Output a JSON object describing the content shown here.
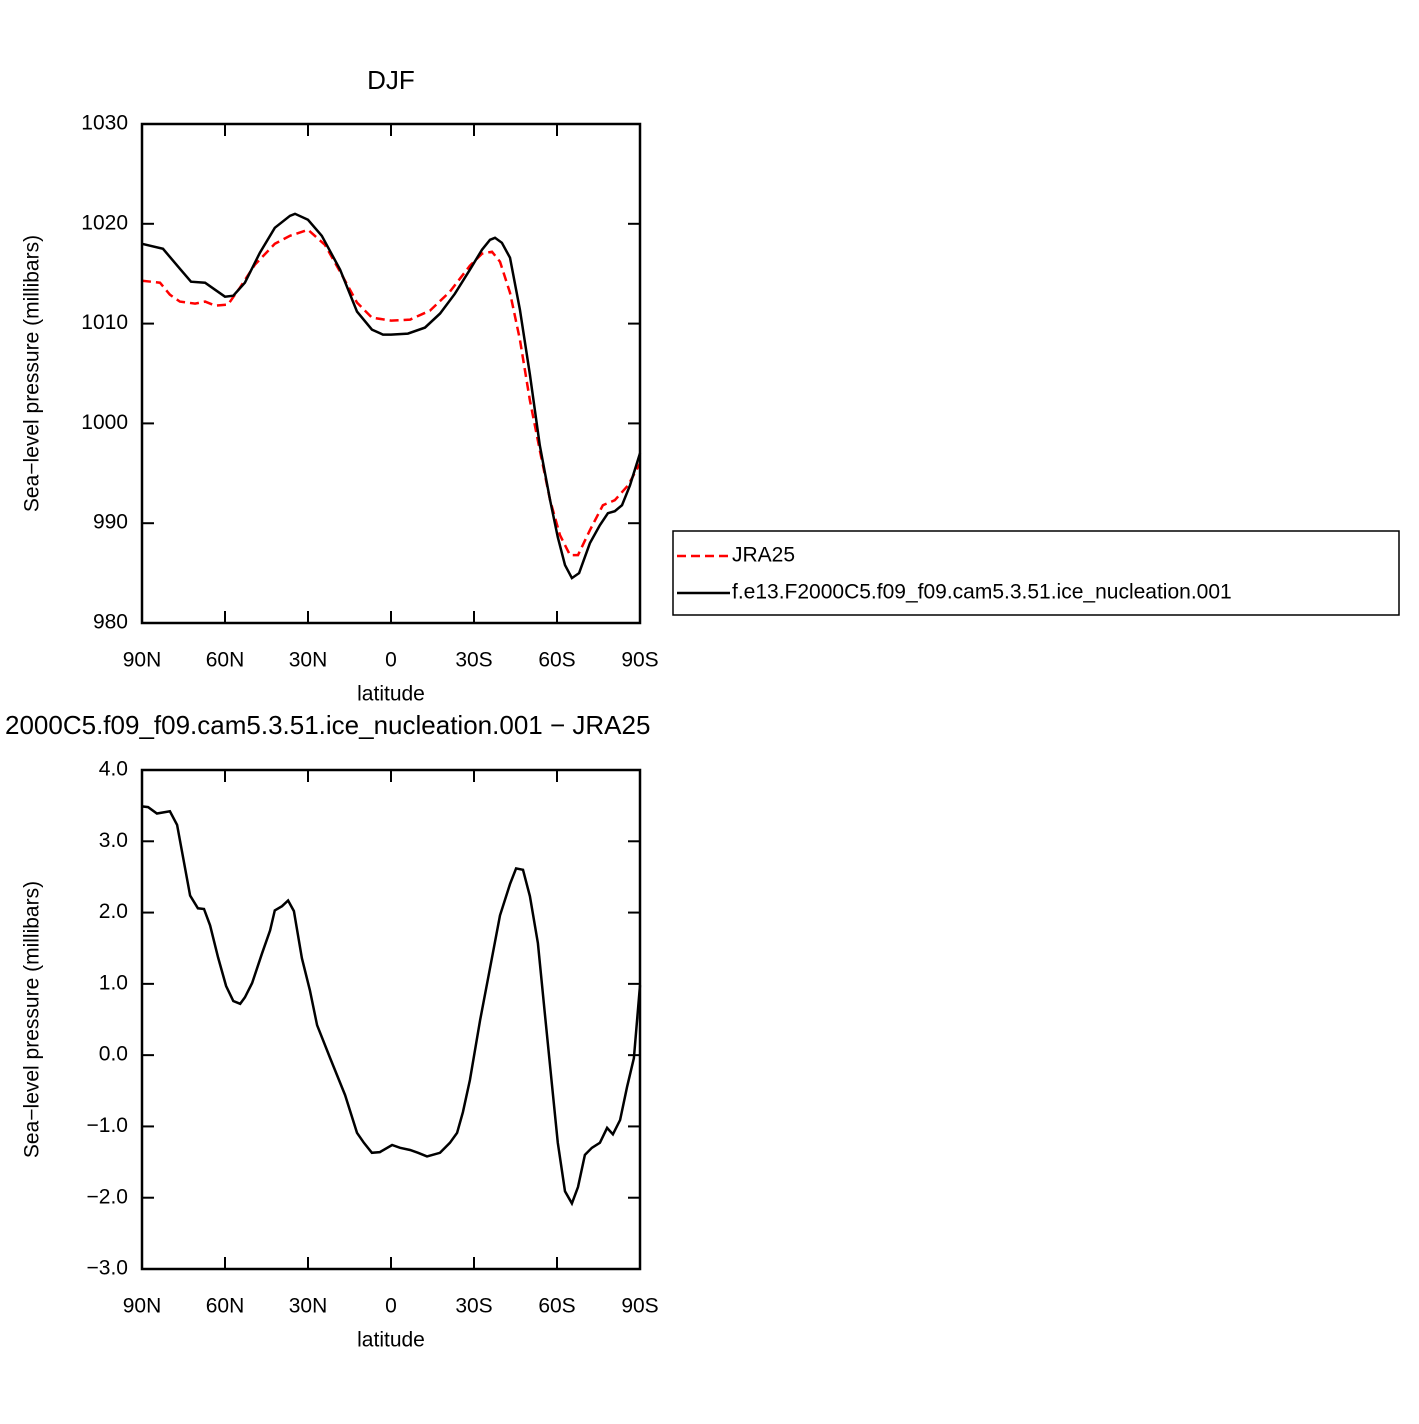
{
  "chart_data": [
    {
      "type": "line",
      "title": "DJF",
      "xlabel": "latitude",
      "ylabel": "Sea−level pressure (millibars)",
      "xlim": [
        90,
        -90
      ],
      "ylim": [
        980,
        1030
      ],
      "xticks": [
        {
          "value": 90,
          "label": "90N"
        },
        {
          "value": 60,
          "label": "60N"
        },
        {
          "value": 30,
          "label": "30N"
        },
        0,
        {
          "value": -30,
          "label": "30S"
        },
        {
          "value": -60,
          "label": "60S"
        },
        {
          "value": -90,
          "label": "90S"
        }
      ],
      "yticks": [
        980,
        990,
        1000,
        1010,
        1020,
        1030
      ],
      "legend": "right",
      "series": [
        {
          "name": "JRA25",
          "color": "#ff0000",
          "dash": true,
          "x": [
            90,
            83.5,
            79.9,
            76.3,
            70.8,
            67.2,
            63.6,
            58.9,
            54.6,
            49.2,
            42,
            36.5,
            30,
            23.9,
            18.4,
            12.3,
            6.9,
            0,
            -6.9,
            -14.1,
            -21.3,
            -28.5,
            -32.9,
            -36.5,
            -39.4,
            -43,
            -46.6,
            -50.2,
            -53.8,
            -57.5,
            -61.1,
            -64.7,
            -67.6,
            -71.9,
            -76.6,
            -80.9,
            -85.7,
            -90
          ],
          "values": [
            1014.3,
            1014.1,
            1012.9,
            1012.2,
            1012.0,
            1012.2,
            1011.8,
            1011.9,
            1013.6,
            1015.9,
            1018.0,
            1018.8,
            1019.4,
            1017.9,
            1015.2,
            1012.1,
            1010.6,
            1010.3,
            1010.4,
            1011.3,
            1013.2,
            1015.8,
            1017.0,
            1017.2,
            1016.2,
            1013.1,
            1008.4,
            1002.3,
            997.3,
            992.3,
            988.8,
            986.8,
            986.8,
            989.3,
            991.8,
            992.3,
            993.8,
            996.0
          ]
        },
        {
          "name": "f.e13.F2000C5.f09_f09.cam5.3.51.ice_nucleation.001",
          "color": "#000000",
          "dash": false,
          "x": [
            90,
            82.4,
            76,
            72.3,
            67.2,
            63.6,
            60,
            57,
            52.8,
            47.4,
            42,
            36.5,
            34.7,
            30,
            25,
            18.4,
            12.3,
            6.9,
            2.9,
            0,
            -6.1,
            -12.3,
            -17.7,
            -23.1,
            -28.5,
            -32.9,
            -35.8,
            -37.6,
            -40.1,
            -43,
            -46.6,
            -50.2,
            -53.8,
            -57.5,
            -60.3,
            -62.9,
            -65.4,
            -68,
            -71.9,
            -75.5,
            -78.4,
            -80.9,
            -83.5,
            -86.4,
            -90
          ],
          "values": [
            1018.0,
            1017.5,
            1015.4,
            1014.2,
            1014.1,
            1013.4,
            1012.7,
            1012.8,
            1014.1,
            1017.1,
            1019.6,
            1020.8,
            1021.0,
            1020.4,
            1018.8,
            1015.4,
            1011.2,
            1009.4,
            1008.9,
            1008.9,
            1009.0,
            1009.6,
            1011.0,
            1013.0,
            1015.4,
            1017.4,
            1018.4,
            1018.6,
            1018.1,
            1016.6,
            1011.4,
            1004.9,
            997.8,
            992.3,
            988.6,
            985.8,
            984.5,
            985.0,
            988.0,
            989.8,
            991.0,
            991.2,
            991.8,
            993.8,
            997.0
          ]
        }
      ]
    },
    {
      "type": "line",
      "title": "2000C5.f09_f09.cam5.3.51.ice_nucleation.001 − JRA25",
      "xlabel": "latitude",
      "ylabel": "Sea−level pressure (millibars)",
      "xlim": [
        90,
        -90
      ],
      "ylim": [
        -3,
        4
      ],
      "xticks": [
        {
          "value": 90,
          "label": "90N"
        },
        {
          "value": 60,
          "label": "60N"
        },
        {
          "value": 30,
          "label": "30N"
        },
        0,
        {
          "value": -30,
          "label": "30S"
        },
        {
          "value": -60,
          "label": "60S"
        },
        {
          "value": -90,
          "label": "90S"
        }
      ],
      "yticks": [
        {
          "value": -3,
          "label": "−3.0"
        },
        {
          "value": -2,
          "label": "−2.0"
        },
        {
          "value": -1,
          "label": "−1.0"
        },
        {
          "value": 0,
          "label": "0.0"
        },
        {
          "value": 1,
          "label": "1.0"
        },
        {
          "value": 2,
          "label": "2.0"
        },
        {
          "value": 3,
          "label": "3.0"
        },
        {
          "value": 4,
          "label": "4.0"
        }
      ],
      "series": [
        {
          "color": "#000000",
          "dash": false,
          "x": [
            90,
            87.8,
            84.6,
            79.9,
            77.3,
            72.6,
            69.8,
            67.6,
            65.4,
            62.5,
            59.6,
            57,
            54.5,
            52.8,
            50.2,
            46.6,
            43.7,
            42,
            39.4,
            37.2,
            35.1,
            32.2,
            29.3,
            26.7,
            22,
            16.6,
            12.3,
            9.8,
            6.9,
            4,
            -0.4,
            -3.3,
            -6.9,
            -9.8,
            -13,
            -17.7,
            -21.3,
            -23.9,
            -26,
            -28.5,
            -32.2,
            -35.8,
            -39.4,
            -43,
            -45.2,
            -47.7,
            -50.2,
            -53.1,
            -55.6,
            -58.2,
            -60.3,
            -62.9,
            -65.4,
            -67.6,
            -70.1,
            -72.6,
            -75.5,
            -78.1,
            -80.2,
            -82.8,
            -85.3,
            -87.8,
            -90
          ],
          "values": [
            3.49,
            3.48,
            3.39,
            3.42,
            3.23,
            2.24,
            2.06,
            2.05,
            1.82,
            1.37,
            0.97,
            0.76,
            0.72,
            0.81,
            1.01,
            1.43,
            1.75,
            2.03,
            2.09,
            2.17,
            2.02,
            1.36,
            0.91,
            0.42,
            -0.04,
            -0.56,
            -1.09,
            -1.23,
            -1.37,
            -1.36,
            -1.26,
            -1.3,
            -1.33,
            -1.37,
            -1.42,
            -1.37,
            -1.23,
            -1.09,
            -0.8,
            -0.35,
            0.49,
            1.22,
            1.96,
            2.4,
            2.62,
            2.6,
            2.23,
            1.57,
            0.59,
            -0.42,
            -1.23,
            -1.91,
            -2.08,
            -1.85,
            -1.4,
            -1.3,
            -1.23,
            -1.02,
            -1.11,
            -0.91,
            -0.45,
            -0.04,
            0.98
          ]
        }
      ]
    }
  ]
}
